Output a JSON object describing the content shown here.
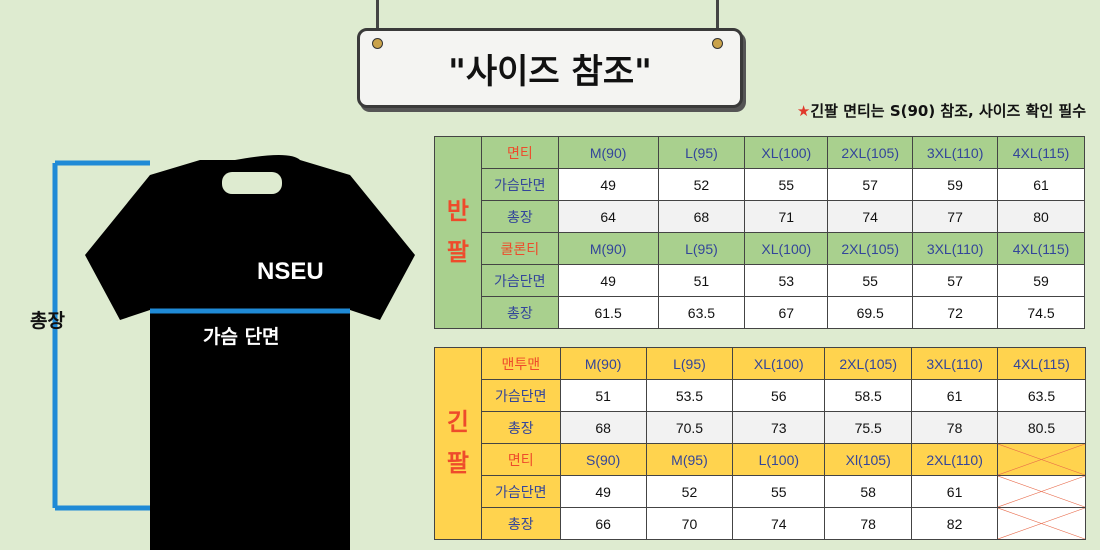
{
  "title": "\"사이즈 참조\"",
  "note": {
    "icon": "star-icon",
    "text": "긴팔 면티는 S(90) 참조, 사이즈 확인 필수"
  },
  "shirt": {
    "brand": "NSEU",
    "chest_label": "가슴 단면",
    "length_label": "총장"
  },
  "colors": {
    "green": "#a9d08e",
    "yellow": "#ffd34e",
    "blue": "#1f8ad6",
    "red": "#ee4b2b"
  },
  "short_sleeve": {
    "side_label": [
      "반",
      "팔"
    ],
    "sections": [
      {
        "name": "면티",
        "sizes": [
          "M(90)",
          "L(95)",
          "XL(100)",
          "2XL(105)",
          "3XL(110)",
          "4XL(115)"
        ],
        "rows": [
          {
            "label": "가슴단면",
            "values": [
              "49",
              "52",
              "55",
              "57",
              "59",
              "61"
            ]
          },
          {
            "label": "총장",
            "values": [
              "64",
              "68",
              "71",
              "74",
              "77",
              "80"
            ]
          }
        ]
      },
      {
        "name": "쿨론티",
        "sizes": [
          "M(90)",
          "L(95)",
          "XL(100)",
          "2XL(105)",
          "3XL(110)",
          "4XL(115)"
        ],
        "rows": [
          {
            "label": "가슴단면",
            "values": [
              "49",
              "51",
              "53",
              "55",
              "57",
              "59"
            ]
          },
          {
            "label": "총장",
            "values": [
              "61.5",
              "63.5",
              "67",
              "69.5",
              "72",
              "74.5"
            ]
          }
        ]
      }
    ]
  },
  "long_sleeve": {
    "side_label": [
      "긴",
      "팔"
    ],
    "sections": [
      {
        "name": "맨투맨",
        "sizes": [
          "M(90)",
          "L(95)",
          "XL(100)",
          "2XL(105)",
          "3XL(110)",
          "4XL(115)"
        ],
        "rows": [
          {
            "label": "가슴단면",
            "values": [
              "51",
              "53.5",
              "56",
              "58.5",
              "61",
              "63.5"
            ]
          },
          {
            "label": "총장",
            "values": [
              "68",
              "70.5",
              "73",
              "75.5",
              "78",
              "80.5"
            ]
          }
        ]
      },
      {
        "name": "면티",
        "sizes": [
          "S(90)",
          "M(95)",
          "L(100)",
          "Xl(105)",
          "2XL(110)",
          ""
        ],
        "rows": [
          {
            "label": "가슴단면",
            "values": [
              "49",
              "52",
              "55",
              "58",
              "61",
              ""
            ]
          },
          {
            "label": "총장",
            "values": [
              "66",
              "70",
              "74",
              "78",
              "82",
              ""
            ]
          }
        ]
      }
    ]
  }
}
